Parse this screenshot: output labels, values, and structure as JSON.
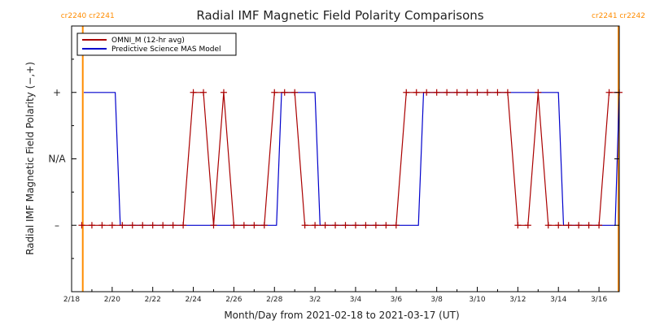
{
  "chart_data": {
    "type": "line",
    "title": "Radial IMF Magnetic Field Polarity Comparisons",
    "xlabel": "Month/Day from 2021-02-18 to 2021-03-17 (UT)",
    "ylabel": "Radial IMF Magnetic Field Polarity (−,+)",
    "xlim": [
      0,
      27
    ],
    "ylim": [
      -2,
      2
    ],
    "x_ticks": [
      {
        "x": 0,
        "label": "2/18"
      },
      {
        "x": 2,
        "label": "2/20"
      },
      {
        "x": 4,
        "label": "2/22"
      },
      {
        "x": 6,
        "label": "2/24"
      },
      {
        "x": 8,
        "label": "2/26"
      },
      {
        "x": 10,
        "label": "2/28"
      },
      {
        "x": 12,
        "label": "3/2"
      },
      {
        "x": 14,
        "label": "3/4"
      },
      {
        "x": 16,
        "label": "3/6"
      },
      {
        "x": 18,
        "label": "3/8"
      },
      {
        "x": 20,
        "label": "3/10"
      },
      {
        "x": 22,
        "label": "3/12"
      },
      {
        "x": 24,
        "label": "3/14"
      },
      {
        "x": 26,
        "label": "3/16"
      }
    ],
    "y_ticks": [
      {
        "y": 1,
        "label": "+"
      },
      {
        "y": 0,
        "label": "N/A"
      },
      {
        "y": -1,
        "label": "–"
      }
    ],
    "carrington_markers": [
      {
        "x": 0.55,
        "label": "cr2240 cr2241",
        "anchor": "end"
      },
      {
        "x": 26.96,
        "label": "cr2241 cr2242",
        "anchor": "middle"
      }
    ],
    "series": [
      {
        "name": "OMNI_M (12-hr avg)",
        "color": "#aa0000",
        "markers": true,
        "x": [
          0.5,
          1.0,
          1.5,
          2.0,
          2.5,
          3.0,
          3.5,
          4.0,
          4.5,
          5.0,
          5.5,
          6.0,
          6.5,
          7.0,
          7.5,
          8.0,
          8.5,
          9.0,
          9.5,
          10.0,
          10.5,
          11.0,
          11.5,
          12.0,
          12.5,
          13.0,
          13.5,
          14.0,
          14.5,
          15.0,
          15.5,
          16.0,
          16.5,
          17.0,
          17.5,
          18.0,
          18.5,
          19.0,
          19.5,
          20.0,
          20.5,
          21.0,
          21.5,
          22.0,
          22.5,
          23.0,
          23.5,
          24.0,
          24.5,
          25.0,
          25.5,
          26.0,
          26.5,
          27.0
        ],
        "y": [
          -1,
          -1,
          -1,
          -1,
          -1,
          -1,
          -1,
          -1,
          -1,
          -1,
          -1,
          1,
          1,
          -1,
          1,
          -1,
          -1,
          -1,
          -1,
          1,
          1,
          1,
          -1,
          -1,
          -1,
          -1,
          -1,
          -1,
          -1,
          -1,
          -1,
          -1,
          1,
          1,
          1,
          1,
          1,
          1,
          1,
          1,
          1,
          1,
          1,
          -1,
          -1,
          1,
          -1,
          -1,
          -1,
          -1,
          -1,
          -1,
          1,
          1
        ]
      },
      {
        "name": "Predictive Science MAS Model",
        "color": "#0000cc",
        "markers": false,
        "x": [
          0.6,
          2.15,
          2.4,
          10.1,
          10.35,
          12.0,
          12.25,
          17.1,
          17.35,
          24.0,
          24.25,
          26.8,
          27.0
        ],
        "y": [
          1,
          1,
          -1,
          -1,
          1,
          1,
          -1,
          -1,
          1,
          1,
          -1,
          -1,
          1
        ]
      }
    ],
    "legend": "top-left",
    "grid": false
  }
}
